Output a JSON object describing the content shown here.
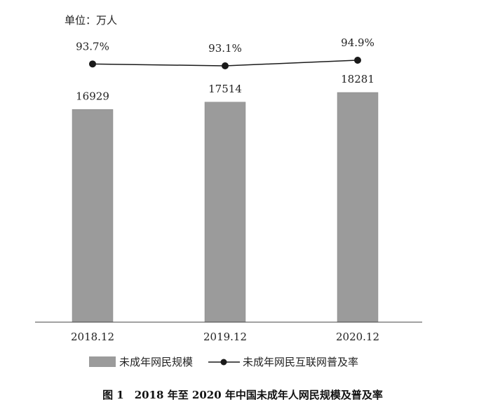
{
  "chart_data": {
    "type": "bar",
    "unit_label": "单位：万人",
    "categories": [
      "2018.12",
      "2019.12",
      "2020.12"
    ],
    "bar_series": {
      "name": "未成年网民规模",
      "values": [
        16929,
        17514,
        18281
      ],
      "value_labels": [
        "16929",
        "17514",
        "18281"
      ],
      "color": "#9b9b9b"
    },
    "line_series": {
      "name": "未成年网民互联网普及率",
      "values": [
        93.7,
        93.1,
        94.9
      ],
      "value_labels": [
        "93.7%",
        "93.1%",
        "94.9%"
      ],
      "color": "#1a1a1a"
    },
    "grid": false,
    "legend_position": "bottom"
  },
  "caption": "图 1　2018 年至 2020 年中国未成年人网民规模及普及率"
}
